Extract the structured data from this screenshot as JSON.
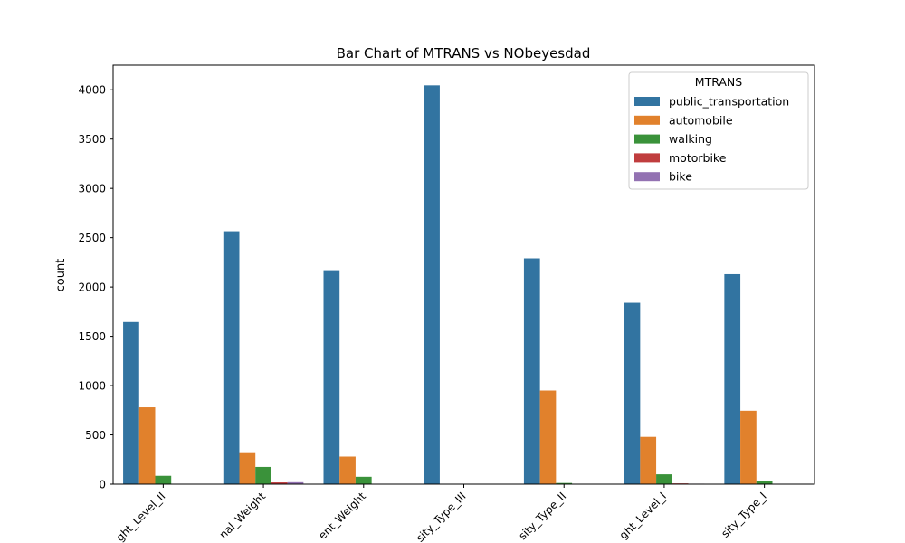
{
  "chart_data": {
    "type": "bar",
    "title": "Bar Chart of MTRANS vs NObeyesdad",
    "xlabel": "",
    "ylabel": "count",
    "ylim": [
      0,
      4250
    ],
    "yticks": [
      0,
      500,
      1000,
      1500,
      2000,
      2500,
      3000,
      3500,
      4000
    ],
    "categories": [
      "Overweight_Level_II",
      "Normal_Weight",
      "Insufficient_Weight",
      "Obesity_Type_III",
      "Obesity_Type_II",
      "Overweight_Level_I",
      "Obesity_Type_I"
    ],
    "category_labels_visible": [
      "ght_Level_II",
      "nal_Weight",
      "ent_Weight",
      "sity_Type_III",
      "sity_Type_II",
      "ght_Level_I",
      "sity_Type_I"
    ],
    "legend": {
      "title": "MTRANS",
      "position": "top-right"
    },
    "grid": false,
    "series": [
      {
        "name": "public_transportation",
        "color": "#3274a1",
        "values": [
          1645,
          2565,
          2170,
          4045,
          2290,
          1840,
          2130
        ]
      },
      {
        "name": "automobile",
        "color": "#e1812c",
        "values": [
          780,
          315,
          280,
          3,
          950,
          480,
          745
        ]
      },
      {
        "name": "walking",
        "color": "#3a923a",
        "values": [
          85,
          175,
          75,
          0,
          12,
          100,
          28
        ]
      },
      {
        "name": "motorbike",
        "color": "#c03d3e",
        "values": [
          2,
          18,
          3,
          0,
          2,
          8,
          2
        ]
      },
      {
        "name": "bike",
        "color": "#9372b2",
        "values": [
          2,
          20,
          2,
          0,
          1,
          5,
          1
        ]
      }
    ]
  }
}
